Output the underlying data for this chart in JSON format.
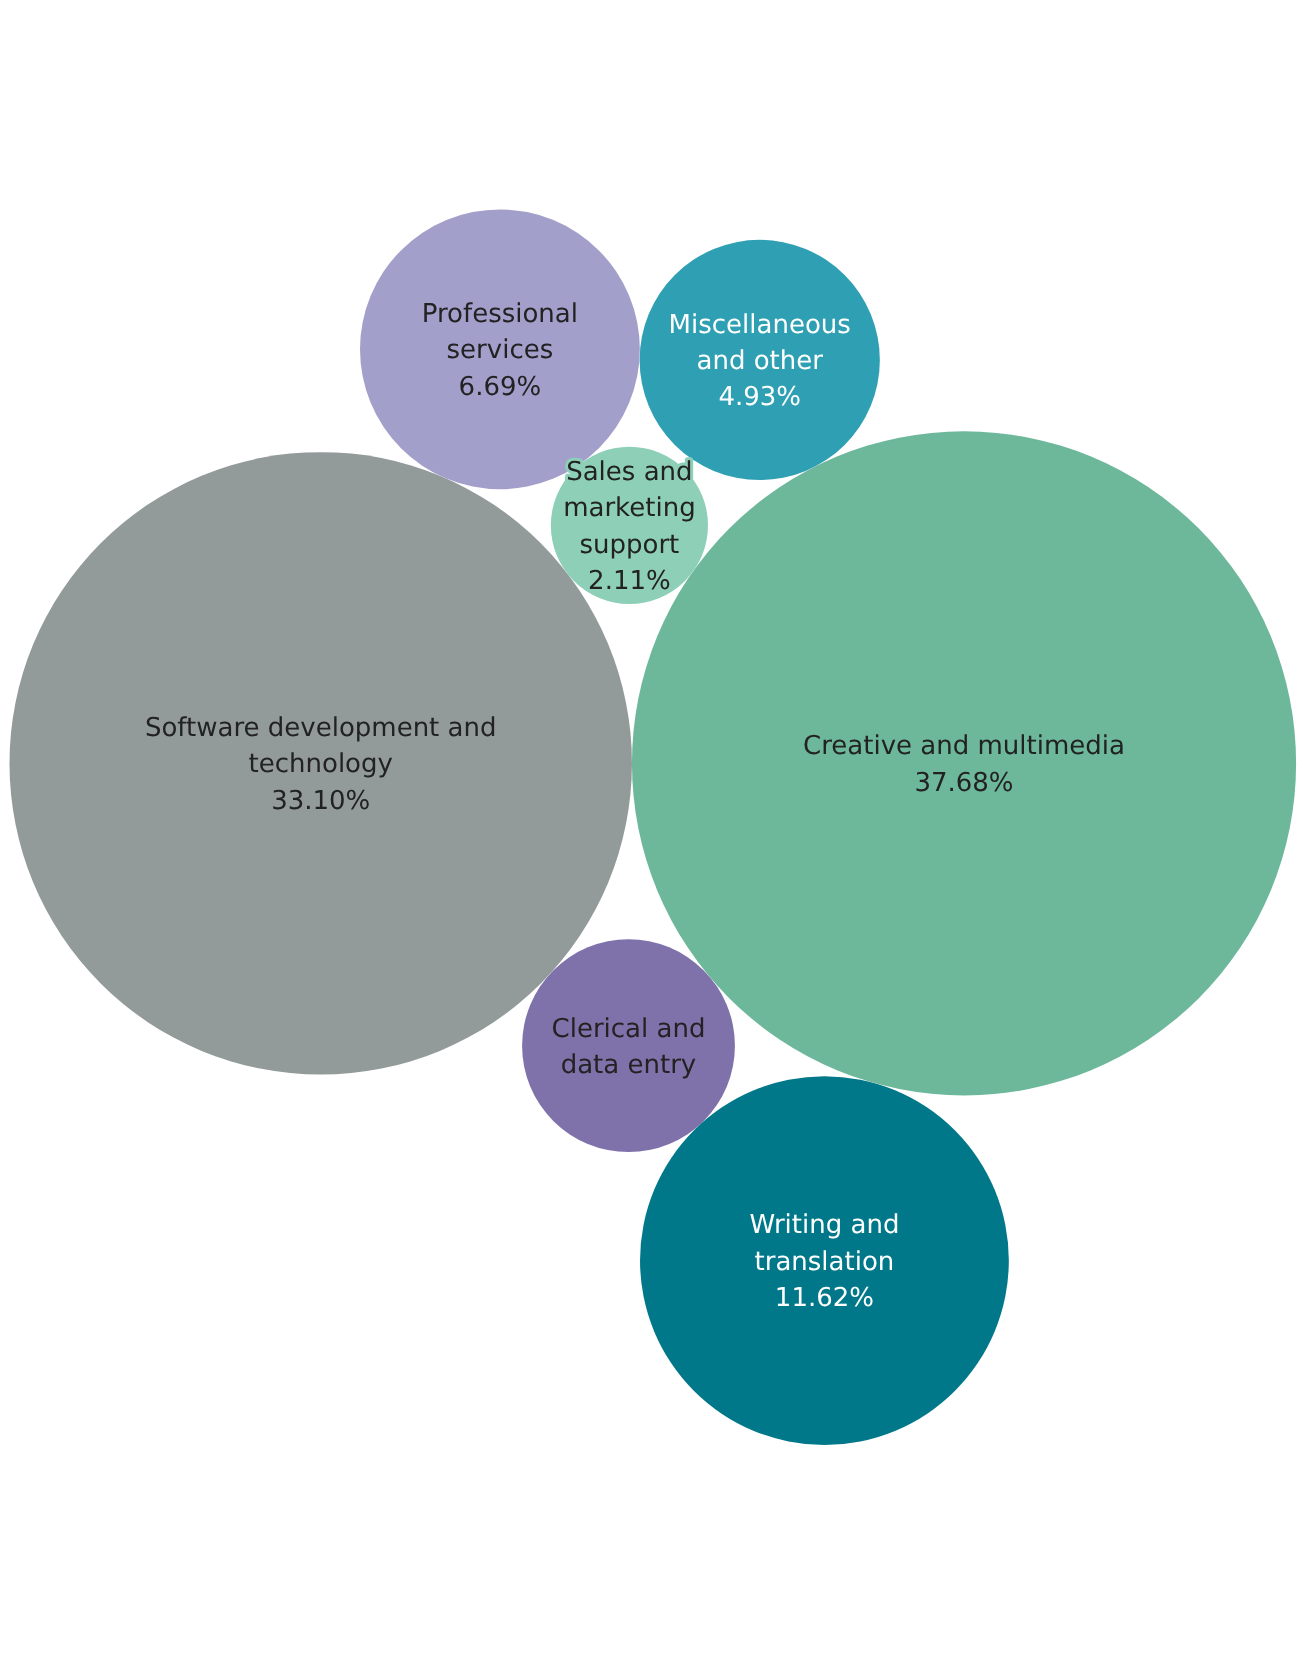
{
  "chart_data": {
    "type": "other",
    "categories": [
      "Software development and technology",
      "Creative and multimedia",
      "Clerical and data entry",
      "Sales and marketing support",
      "Professional services",
      "Miscellaneous and other",
      "Writing and translation"
    ],
    "values": [
      33.1,
      37.68,
      null,
      2.11,
      6.69,
      4.93,
      11.62
    ],
    "value_labels": [
      "33.10%",
      "37.68%",
      null,
      "2.11%",
      "6.69%",
      "4.93%",
      "11.62%"
    ],
    "colors": [
      "#939a9a",
      "#6db89a",
      "#7f72ab",
      "#8ecfb8",
      "#a39fcb",
      "#2fa0b3",
      "#00788a"
    ]
  }
}
